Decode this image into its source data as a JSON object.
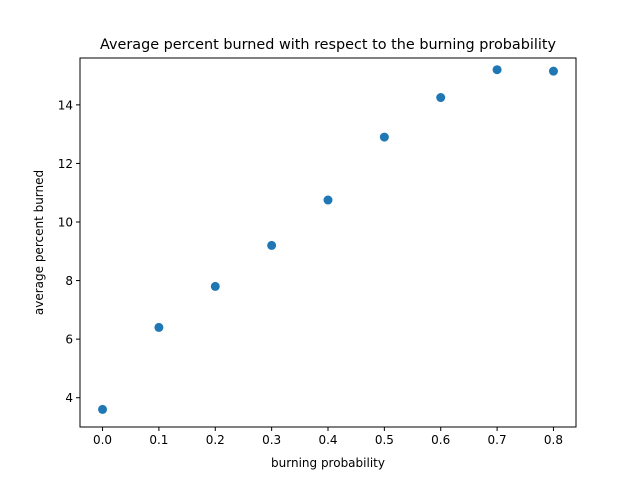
{
  "chart_data": {
    "type": "scatter",
    "title": "Average percent burned with respect to the burning probability",
    "xlabel": "burning probability",
    "ylabel": "average percent burned",
    "xlim": [
      -0.04,
      0.84
    ],
    "ylim": [
      3.0,
      15.6
    ],
    "xticks": [
      0.0,
      0.1,
      0.2,
      0.3,
      0.4,
      0.5,
      0.6,
      0.7,
      0.8
    ],
    "xtick_labels": [
      "0.0",
      "0.1",
      "0.2",
      "0.3",
      "0.4",
      "0.5",
      "0.6",
      "0.7",
      "0.8"
    ],
    "yticks": [
      4,
      6,
      8,
      10,
      12,
      14
    ],
    "ytick_labels": [
      "4",
      "6",
      "8",
      "10",
      "12",
      "14"
    ],
    "grid": false,
    "series": [
      {
        "color": "#1f77b4",
        "x": [
          0.0,
          0.1,
          0.2,
          0.3,
          0.4,
          0.5,
          0.6,
          0.7,
          0.8
        ],
        "y": [
          3.6,
          6.4,
          7.8,
          9.2,
          10.75,
          12.9,
          14.25,
          15.2,
          15.15
        ]
      }
    ]
  }
}
